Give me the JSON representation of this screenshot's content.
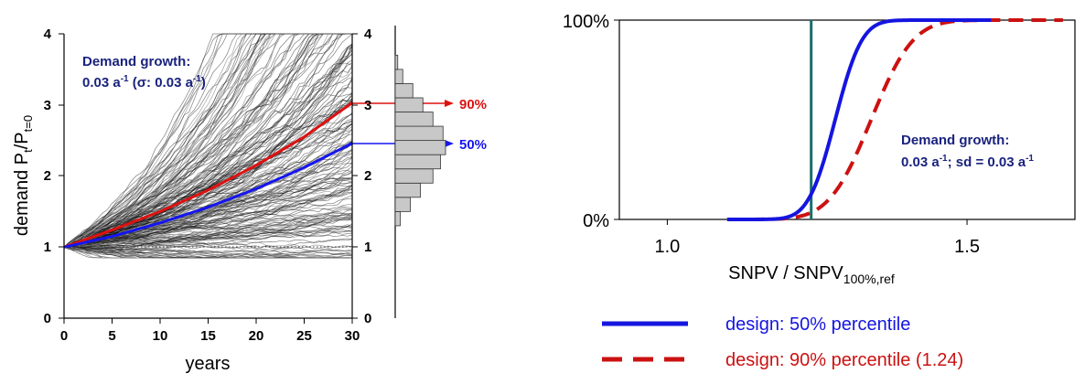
{
  "chart_data": [
    {
      "type": "line",
      "xlabel": "years",
      "ylabel_main": "demand P",
      "ylabel_sub1": "t",
      "ylabel_mid": "/P",
      "ylabel_sub2": "t=0",
      "xlim": [
        0,
        30
      ],
      "ylim": [
        0,
        4
      ],
      "x_ticks": [
        "0",
        "5",
        "10",
        "15",
        "20",
        "25",
        "30"
      ],
      "y_ticks": [
        "0",
        "1",
        "2",
        "3",
        "4"
      ],
      "right_y_ticks": [
        "0",
        "1",
        "2",
        "3",
        "4"
      ],
      "annotation_line1": "Demand growth:",
      "annotation_line2_a": "0.03 a",
      "annotation_line2_sup": "-1",
      "annotation_line2_b": " (σ: 0.03 a",
      "annotation_line2_sup2": "-1",
      "annotation_line2_c": ")",
      "reference_level": 1,
      "growth_rate": 0.03,
      "growth_sd": 0.03,
      "series": [
        {
          "name": "90%",
          "color": "#dd1111",
          "x": [
            0,
            5,
            10,
            15,
            20,
            25,
            30
          ],
          "y": [
            1.0,
            1.24,
            1.5,
            1.8,
            2.15,
            2.55,
            3.03
          ]
        },
        {
          "name": "50%",
          "color": "#1515f0",
          "x": [
            0,
            5,
            10,
            15,
            20,
            25,
            30
          ],
          "y": [
            1.0,
            1.15,
            1.34,
            1.56,
            1.82,
            2.12,
            2.46
          ]
        }
      ],
      "histogram": {
        "bin_edges": [
          1.3,
          1.5,
          1.7,
          1.9,
          2.1,
          2.3,
          2.5,
          2.7,
          2.9,
          3.1,
          3.3,
          3.5,
          3.7
        ],
        "relative_counts": [
          0.1,
          0.3,
          0.5,
          0.75,
          0.9,
          1.0,
          0.95,
          0.75,
          0.55,
          0.35,
          0.15,
          0.05
        ]
      },
      "label_90": "90%",
      "label_50": "50%"
    },
    {
      "type": "line",
      "xlabel_main": "SNPV / SNPV",
      "xlabel_sub": "100%,ref",
      "xlim": [
        0.92,
        1.68
      ],
      "ylim": [
        0,
        100
      ],
      "x_ticks": [
        1.0,
        1.5
      ],
      "x_tick_labels": [
        "1.0",
        "1.5"
      ],
      "y_ticks": [
        0,
        100
      ],
      "y_tick_labels": [
        "0%",
        "100%"
      ],
      "vertical_line": {
        "x": 1.24,
        "color": "#1a6e6e"
      },
      "annotation_line1": "Demand growth:",
      "annotation_line2_a": "0.03 a",
      "annotation_line2_sup": "-1",
      "annotation_line2_b": "; sd = 0.03 a",
      "annotation_line2_sup2": "-1",
      "series": [
        {
          "name": "design: 50% percentile",
          "color": "#1515e0",
          "style": "solid",
          "mean": 1.28,
          "sd": 0.035,
          "xstart": 1.1,
          "xend": 1.54
        },
        {
          "name": "design: 90% percentile (1.24)",
          "color": "#cc1111",
          "style": "dashed",
          "mean": 1.34,
          "sd": 0.055,
          "xstart": 1.1,
          "xend": 1.66
        }
      ]
    }
  ],
  "legend": {
    "item1": "design: 50% percentile",
    "item2": "design: 90% percentile (1.24)",
    "item1_color": "#1515e0",
    "item2_color": "#cc1111"
  }
}
